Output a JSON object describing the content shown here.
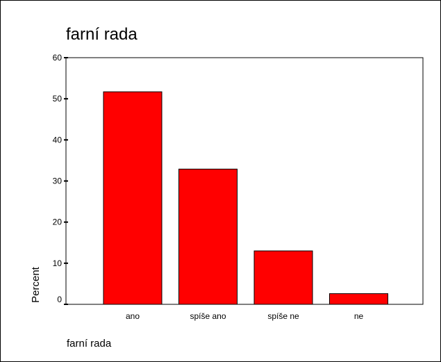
{
  "chart_data": {
    "type": "bar",
    "title": "farní rada",
    "xlabel": "farní rada",
    "ylabel": "Percent",
    "categories": [
      "ano",
      "spíše ano",
      "spíše ne",
      "ne"
    ],
    "values": [
      51.7,
      32.9,
      13.0,
      2.6
    ],
    "ylim": [
      0,
      60
    ],
    "yticks": [
      "0",
      "10",
      "20",
      "30",
      "40",
      "50",
      "60"
    ],
    "bar_color": "#ff0000",
    "grid": false
  }
}
